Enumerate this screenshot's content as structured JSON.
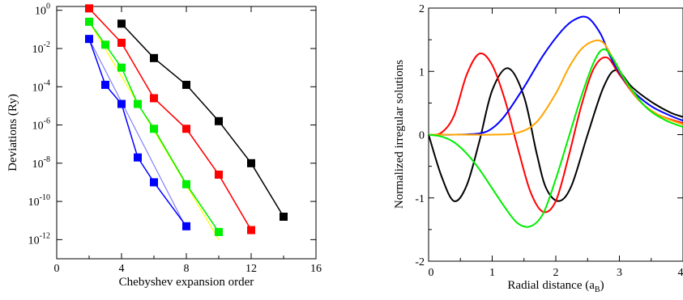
{
  "chart_data": [
    {
      "type": "line",
      "xlabel": "Chebyshev expansion order",
      "ylabel": "Deviations (Ry)",
      "y_scale": "log",
      "xlim": [
        0,
        16
      ],
      "ylim_exponent": [
        -13,
        0.2
      ],
      "x_ticks": [
        0,
        4,
        8,
        12,
        16
      ],
      "y_tick_exponents": [
        0,
        -2,
        -4,
        -6,
        -8,
        -10,
        -12
      ],
      "y_tick_base": "10",
      "series": [
        {
          "color": "#000000",
          "marker": "square",
          "x": [
            4,
            6,
            8,
            10,
            12,
            14
          ],
          "y_exponent": [
            -0.7,
            -2.5,
            -3.9,
            -5.8,
            -8.0,
            -10.8
          ]
        },
        {
          "color": "#ff0000",
          "marker": "square",
          "x": [
            2,
            4,
            6,
            8,
            10,
            12
          ],
          "y_exponent": [
            0.1,
            -1.7,
            -4.6,
            -6.2,
            -8.6,
            -11.5
          ]
        },
        {
          "color": "#00ee00",
          "marker": "square",
          "x": [
            2,
            3,
            4,
            5,
            6,
            8,
            10
          ],
          "y_exponent": [
            -0.6,
            -1.8,
            -3.0,
            -4.9,
            -6.2,
            -9.1,
            -11.6
          ]
        },
        {
          "color": "#0000ff",
          "marker": "square",
          "x": [
            2,
            3,
            4,
            5,
            6,
            8
          ],
          "y_exponent": [
            -1.5,
            -3.9,
            -4.9,
            -7.7,
            -9.0,
            -11.3
          ]
        }
      ],
      "fit_lines": [
        {
          "color": "#ff0000",
          "x": [
            2,
            4,
            6,
            8,
            10,
            12
          ],
          "y_exponent": [
            0.1,
            -1.7,
            -4.6,
            -6.2,
            -8.6,
            -11.5
          ]
        },
        {
          "color": "#ffff00",
          "x": [
            2,
            10
          ],
          "y_exponent": [
            -0.6,
            -12.0
          ]
        },
        {
          "color": "#00ee00",
          "x": [
            2,
            3,
            4,
            5,
            6,
            8,
            10
          ],
          "y_exponent": [
            -0.6,
            -1.8,
            -3.0,
            -4.9,
            -6.2,
            -9.1,
            -11.6
          ]
        },
        {
          "color": "#8080ff",
          "x": [
            2,
            8
          ],
          "y_exponent": [
            -1.5,
            -11.4
          ]
        }
      ]
    },
    {
      "type": "line",
      "xlabel": "Radial distance (a",
      "xlabel_sub": "B",
      "xlabel_end": ")",
      "ylabel": "Normalized irregular solutions",
      "xlim": [
        0,
        4
      ],
      "ylim": [
        -2,
        2
      ],
      "x_ticks": [
        0,
        1,
        2,
        3,
        4
      ],
      "y_ticks": [
        2,
        1,
        0,
        -1,
        -2
      ],
      "series": [
        {
          "color": "#000000",
          "x": [
            0,
            0.2,
            0.4,
            0.6,
            0.8,
            1.0,
            1.25,
            1.5,
            1.7,
            1.85,
            2.05,
            2.25,
            2.5,
            2.75,
            2.95,
            3.2,
            3.5,
            3.8,
            4.0
          ],
          "y": [
            0,
            -0.65,
            -1.05,
            -0.8,
            -0.1,
            0.7,
            1.05,
            0.6,
            -0.3,
            -0.85,
            -1.05,
            -0.8,
            0.0,
            0.75,
            1.02,
            0.75,
            0.52,
            0.35,
            0.28
          ]
        },
        {
          "color": "#ff0000",
          "x": [
            0,
            0.2,
            0.4,
            0.6,
            0.8,
            1.0,
            1.2,
            1.4,
            1.6,
            1.8,
            2.0,
            2.2,
            2.4,
            2.6,
            2.8,
            3.0,
            3.3,
            3.6,
            4.0
          ],
          "y": [
            0,
            0.03,
            0.3,
            0.95,
            1.28,
            1.1,
            0.55,
            -0.2,
            -0.9,
            -1.22,
            -1.05,
            -0.35,
            0.45,
            1.05,
            1.22,
            0.95,
            0.55,
            0.32,
            0.18
          ]
        },
        {
          "color": "#0000ff",
          "x": [
            0,
            0.4,
            0.8,
            1.0,
            1.2,
            1.5,
            1.8,
            2.1,
            2.3,
            2.5,
            2.7,
            2.85,
            3.0,
            3.2,
            3.5,
            3.8,
            4.0
          ],
          "y": [
            0,
            0.0,
            0.02,
            0.1,
            0.3,
            0.75,
            1.25,
            1.65,
            1.82,
            1.85,
            1.6,
            1.25,
            0.98,
            0.7,
            0.45,
            0.3,
            0.22
          ]
        },
        {
          "color": "#ffa500",
          "x": [
            0,
            0.5,
            1.0,
            1.4,
            1.7,
            2.0,
            2.2,
            2.4,
            2.6,
            2.75,
            2.9,
            3.05,
            3.3,
            3.6,
            4.0
          ],
          "y": [
            0,
            0.0,
            0.0,
            0.03,
            0.2,
            0.65,
            1.05,
            1.35,
            1.48,
            1.45,
            1.2,
            0.92,
            0.55,
            0.32,
            0.16
          ]
        },
        {
          "color": "#00ee00",
          "x": [
            0,
            0.2,
            0.4,
            0.6,
            0.8,
            1.0,
            1.2,
            1.4,
            1.6,
            1.8,
            2.0,
            2.2,
            2.4,
            2.6,
            2.75,
            2.9,
            3.1,
            3.4,
            3.7,
            4.0
          ],
          "y": [
            0,
            -0.03,
            -0.12,
            -0.3,
            -0.55,
            -0.85,
            -1.15,
            -1.4,
            -1.45,
            -1.25,
            -0.7,
            -0.05,
            0.6,
            1.15,
            1.35,
            1.2,
            0.85,
            0.45,
            0.24,
            0.12
          ]
        }
      ]
    }
  ]
}
